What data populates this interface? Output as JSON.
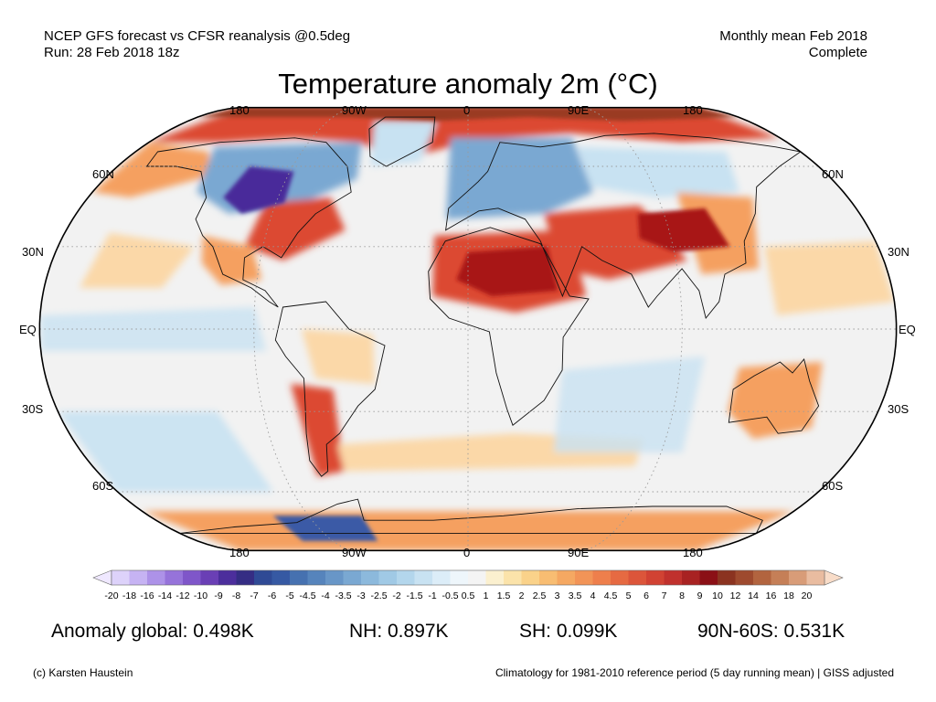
{
  "header": {
    "source": "NCEP GFS forecast vs CFSR reanalysis @0.5deg",
    "run": "Run: 28 Feb 2018 18z",
    "period": "Monthly mean Feb 2018",
    "status": "Complete"
  },
  "title": "Temperature anomaly 2m (°C)",
  "longitude_labels": [
    "180",
    "90W",
    "0",
    "90E",
    "180"
  ],
  "latitude_labels": [
    "60N",
    "30N",
    "EQ",
    "30S",
    "60S"
  ],
  "colorbar": {
    "labels": [
      "-20",
      "-18",
      "-16",
      "-14",
      "-12",
      "-10",
      "-9",
      "-8",
      "-7",
      "-6",
      "-5",
      "-4.5",
      "-4",
      "-3.5",
      "-3",
      "-2.5",
      "-2",
      "-1.5",
      "-1",
      "-0.5",
      "0.5",
      "1",
      "1.5",
      "2",
      "2.5",
      "3",
      "3.5",
      "4",
      "4.5",
      "5",
      "6",
      "7",
      "8",
      "9",
      "10",
      "12",
      "14",
      "16",
      "18",
      "20"
    ],
    "colors": [
      "#ddd2fa",
      "#c6b3f3",
      "#ad92e8",
      "#9673da",
      "#7f56c9",
      "#6a3fb5",
      "#4c2e9c",
      "#352d84",
      "#2f4a95",
      "#3659a3",
      "#4671b0",
      "#5684bc",
      "#6896c7",
      "#7aa8d2",
      "#8cb9dc",
      "#a0c9e5",
      "#b3d6ec",
      "#c8e2f2",
      "#dcedf8",
      "#eef6fb",
      "#f4f4f4",
      "#fbf0cf",
      "#fbe3aa",
      "#fad28a",
      "#f8bd72",
      "#f5a862",
      "#f29457",
      "#ee7f4c",
      "#e66a42",
      "#dc553a",
      "#d14233",
      "#c0312d",
      "#a82222",
      "#8b1016",
      "#8b3320",
      "#9e4a2e",
      "#b2643f",
      "#c57f57",
      "#d89c78",
      "#e9bca0"
    ],
    "under_color": "#efe8ff",
    "over_color": "#f8dcc8"
  },
  "map_colors": {
    "ocean_neutral": "#f2f2f2",
    "warm_light": "#fbd8a8",
    "warm_mid": "#f5a060",
    "warm_strong": "#dc4a30",
    "warm_extreme": "#a81818",
    "arctic": "#9a3a22",
    "cold_light": "#c8e2f2",
    "cold_mid": "#7aa8d2",
    "cold_strong": "#3a5aa6",
    "cold_extreme": "#4a2c9a",
    "coast": "#111111",
    "grid": "#9a9a9a"
  },
  "stats": {
    "global": "Anomaly global: 0.498K",
    "nh": "NH: 0.897K",
    "sh": "SH: 0.099K",
    "arctic": "90N-60S: 0.531K"
  },
  "footer": {
    "credit": "(c) Karsten Haustein",
    "note": "Climatology for 1981-2010 reference period (5 day running mean) | GISS adjusted"
  }
}
